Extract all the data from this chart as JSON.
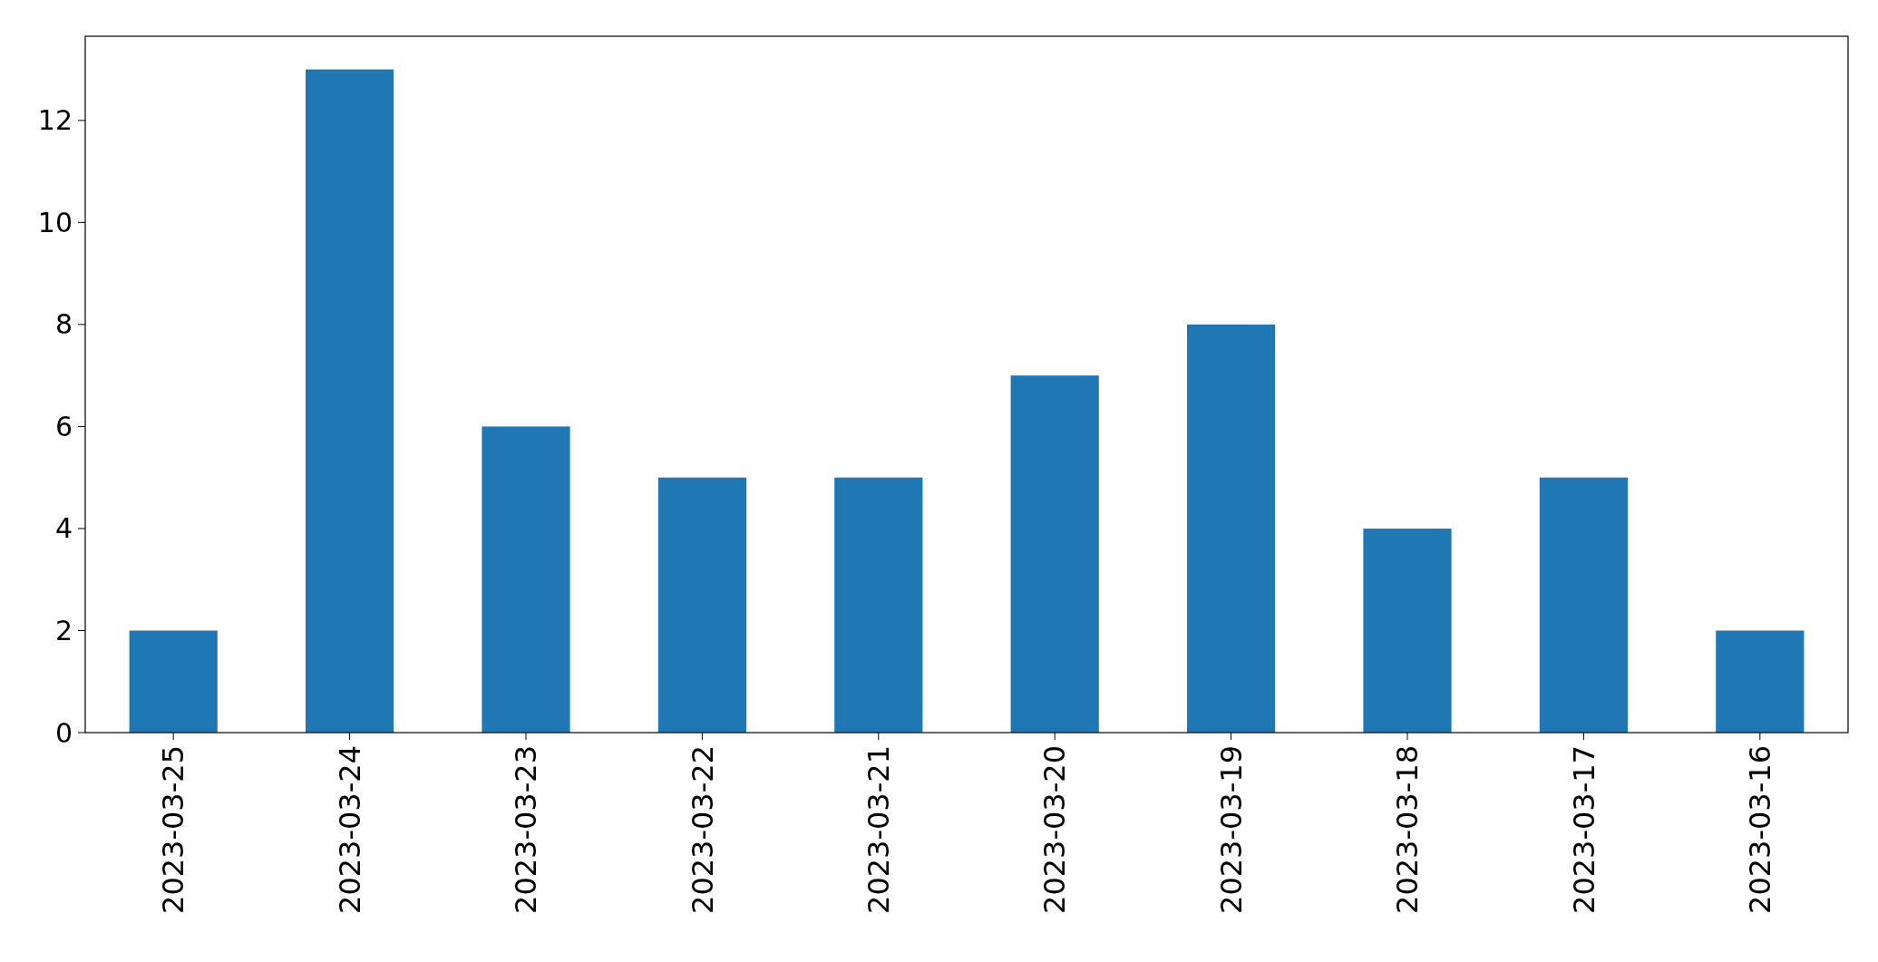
{
  "chart_data": {
    "type": "bar",
    "categories": [
      "2023-03-25",
      "2023-03-24",
      "2023-03-23",
      "2023-03-22",
      "2023-03-21",
      "2023-03-20",
      "2023-03-19",
      "2023-03-18",
      "2023-03-17",
      "2023-03-16"
    ],
    "values": [
      2,
      13,
      6,
      5,
      5,
      7,
      8,
      4,
      5,
      2
    ],
    "color": "#1f77b4",
    "ylim": [
      0,
      13.65
    ],
    "yticks": [
      0,
      2,
      4,
      6,
      8,
      10,
      12
    ],
    "grid": false
  }
}
